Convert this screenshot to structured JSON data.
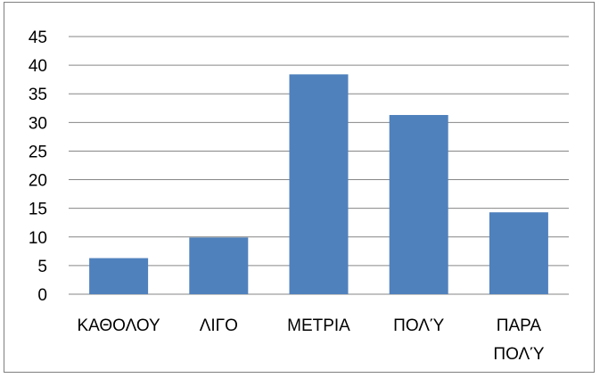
{
  "chart_data": {
    "type": "bar",
    "categories": [
      [
        "ΚΑΘΟΛΟΥ"
      ],
      [
        "ΛΙΓΟ"
      ],
      [
        "ΜΕΤΡΙΑ"
      ],
      [
        "ΠΟΛΎ"
      ],
      [
        "ΠΑΡΑ",
        "ΠΟΛΎ"
      ]
    ],
    "values": [
      6.3,
      9.9,
      38.4,
      31.3,
      14.3
    ],
    "ylim": [
      0,
      45
    ],
    "yticks": [
      "0",
      "5",
      "10",
      "15",
      "20",
      "25",
      "30",
      "35",
      "40",
      "45"
    ],
    "grid": true,
    "legend": "none",
    "bar_color": "#4F81BD",
    "grid_color": "#868686"
  }
}
